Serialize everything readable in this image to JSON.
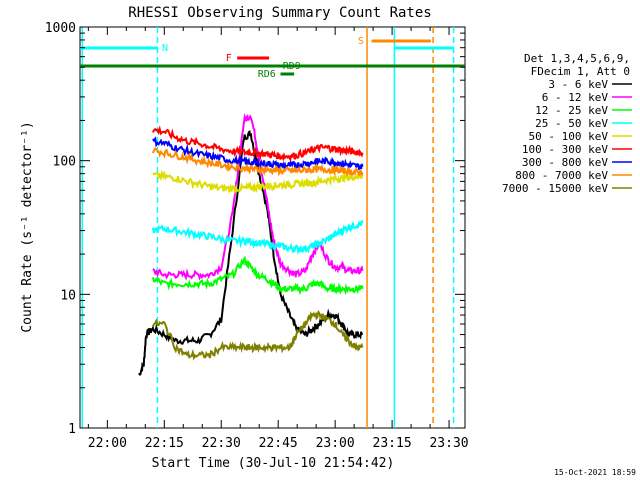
{
  "chart_data": {
    "type": "line",
    "title": "RHESSI Observing Summary Count Rates",
    "xlabel": "Start Time (30-Jul-10 21:54:42)",
    "ylabel": "Count Rate (s⁻¹ detector⁻¹)",
    "xlim": [
      21.88,
      23.57
    ],
    "ylim": [
      1,
      1000
    ],
    "yscale": "log",
    "x_unit": "hours UT",
    "xticks": [
      {
        "x": 22.0,
        "label": "22:00"
      },
      {
        "x": 22.25,
        "label": "22:15"
      },
      {
        "x": 22.5,
        "label": "22:30"
      },
      {
        "x": 22.75,
        "label": "22:45"
      },
      {
        "x": 23.0,
        "label": "23:00"
      },
      {
        "x": 23.25,
        "label": "23:15"
      },
      {
        "x": 23.5,
        "label": "23:30"
      }
    ],
    "yticks": [
      {
        "y": 1,
        "label": "1"
      },
      {
        "y": 10,
        "label": "10"
      },
      {
        "y": 100,
        "label": "100"
      },
      {
        "y": 1000,
        "label": "1000"
      }
    ],
    "legend_header": [
      "Det 1,3,4,5,6,9,",
      "FDecim 1, Att 0"
    ],
    "legend_position": "right",
    "date_stamp": "15-Oct-2021 18:59",
    "series": [
      {
        "name": "3 - 6 keV",
        "color": "#000000",
        "points": [
          [
            22.14,
            2.5
          ],
          [
            22.16,
            3.0
          ],
          [
            22.17,
            5.0
          ],
          [
            22.2,
            5.5
          ],
          [
            22.25,
            5.0
          ],
          [
            22.3,
            4.5
          ],
          [
            22.35,
            4.5
          ],
          [
            22.4,
            4.5
          ],
          [
            22.45,
            5.0
          ],
          [
            22.5,
            6.5
          ],
          [
            22.55,
            30
          ],
          [
            22.6,
            150
          ],
          [
            22.63,
            160
          ],
          [
            22.66,
            90
          ],
          [
            22.7,
            45
          ],
          [
            22.73,
            20
          ],
          [
            22.76,
            10
          ],
          [
            22.8,
            7
          ],
          [
            22.83,
            5.5
          ],
          [
            22.87,
            5.0
          ],
          [
            22.9,
            5.5
          ],
          [
            22.93,
            6.0
          ],
          [
            22.97,
            7.0
          ],
          [
            23.0,
            7.0
          ],
          [
            23.03,
            6.0
          ],
          [
            23.06,
            5.0
          ],
          [
            23.09,
            5.0
          ],
          [
            23.12,
            5.0
          ]
        ]
      },
      {
        "name": "6 - 12 keV",
        "color": "#ff00ff",
        "points": [
          [
            22.2,
            15
          ],
          [
            22.25,
            14
          ],
          [
            22.3,
            14
          ],
          [
            22.35,
            14
          ],
          [
            22.4,
            14
          ],
          [
            22.45,
            14
          ],
          [
            22.5,
            16
          ],
          [
            22.55,
            40
          ],
          [
            22.6,
            200
          ],
          [
            22.63,
            220
          ],
          [
            22.66,
            120
          ],
          [
            22.7,
            50
          ],
          [
            22.73,
            25
          ],
          [
            22.76,
            17
          ],
          [
            22.8,
            15
          ],
          [
            22.83,
            14
          ],
          [
            22.87,
            15
          ],
          [
            22.9,
            20
          ],
          [
            22.93,
            24
          ],
          [
            22.97,
            18
          ],
          [
            23.0,
            16
          ],
          [
            23.03,
            16
          ],
          [
            23.06,
            15
          ],
          [
            23.09,
            15
          ],
          [
            23.12,
            15
          ]
        ]
      },
      {
        "name": "12 - 25 keV",
        "color": "#00ff00",
        "points": [
          [
            22.2,
            13
          ],
          [
            22.25,
            12
          ],
          [
            22.3,
            12
          ],
          [
            22.35,
            12
          ],
          [
            22.4,
            12
          ],
          [
            22.45,
            12
          ],
          [
            22.5,
            13
          ],
          [
            22.55,
            14
          ],
          [
            22.6,
            18
          ],
          [
            22.63,
            16
          ],
          [
            22.66,
            14
          ],
          [
            22.7,
            13
          ],
          [
            22.73,
            12
          ],
          [
            22.76,
            11
          ],
          [
            22.8,
            11
          ],
          [
            22.83,
            11
          ],
          [
            22.87,
            11
          ],
          [
            22.9,
            12
          ],
          [
            22.93,
            12
          ],
          [
            22.97,
            11
          ],
          [
            23.0,
            11
          ],
          [
            23.03,
            11
          ],
          [
            23.06,
            11
          ],
          [
            23.09,
            11
          ],
          [
            23.12,
            11
          ]
        ]
      },
      {
        "name": "25 - 50 keV",
        "color": "#00ffff",
        "points": [
          [
            22.2,
            30
          ],
          [
            22.25,
            31
          ],
          [
            22.3,
            30
          ],
          [
            22.35,
            29
          ],
          [
            22.4,
            28
          ],
          [
            22.45,
            27
          ],
          [
            22.5,
            26
          ],
          [
            22.55,
            25
          ],
          [
            22.6,
            25
          ],
          [
            22.63,
            25
          ],
          [
            22.66,
            24
          ],
          [
            22.7,
            24
          ],
          [
            22.73,
            23
          ],
          [
            22.76,
            23
          ],
          [
            22.8,
            22
          ],
          [
            22.83,
            22
          ],
          [
            22.87,
            22
          ],
          [
            22.9,
            23
          ],
          [
            22.93,
            24
          ],
          [
            22.97,
            26
          ],
          [
            23.0,
            28
          ],
          [
            23.03,
            30
          ],
          [
            23.06,
            32
          ],
          [
            23.09,
            33
          ],
          [
            23.12,
            34
          ]
        ]
      },
      {
        "name": "50 - 100 keV",
        "color": "#dddd00",
        "points": [
          [
            22.2,
            78
          ],
          [
            22.25,
            76
          ],
          [
            22.3,
            74
          ],
          [
            22.35,
            70
          ],
          [
            22.4,
            67
          ],
          [
            22.45,
            64
          ],
          [
            22.5,
            62
          ],
          [
            22.55,
            62
          ],
          [
            22.6,
            62
          ],
          [
            22.63,
            63
          ],
          [
            22.66,
            64
          ],
          [
            22.7,
            65
          ],
          [
            22.73,
            65
          ],
          [
            22.76,
            66
          ],
          [
            22.8,
            66
          ],
          [
            22.83,
            67
          ],
          [
            22.87,
            68
          ],
          [
            22.9,
            68
          ],
          [
            22.93,
            70
          ],
          [
            22.97,
            72
          ],
          [
            23.0,
            73
          ],
          [
            23.03,
            74
          ],
          [
            23.06,
            75
          ],
          [
            23.09,
            76
          ],
          [
            23.12,
            78
          ]
        ]
      },
      {
        "name": "100 - 300 keV",
        "color": "#ff0000",
        "points": [
          [
            22.2,
            170
          ],
          [
            22.25,
            165
          ],
          [
            22.3,
            150
          ],
          [
            22.35,
            140
          ],
          [
            22.4,
            135
          ],
          [
            22.45,
            128
          ],
          [
            22.5,
            122
          ],
          [
            22.55,
            118
          ],
          [
            22.6,
            115
          ],
          [
            22.63,
            115
          ],
          [
            22.66,
            114
          ],
          [
            22.7,
            112
          ],
          [
            22.73,
            110
          ],
          [
            22.76,
            108
          ],
          [
            22.8,
            108
          ],
          [
            22.83,
            110
          ],
          [
            22.87,
            115
          ],
          [
            22.9,
            120
          ],
          [
            22.93,
            125
          ],
          [
            22.97,
            125
          ],
          [
            23.0,
            122
          ],
          [
            23.03,
            120
          ],
          [
            23.06,
            118
          ],
          [
            23.09,
            116
          ],
          [
            23.12,
            115
          ]
        ]
      },
      {
        "name": "300 - 800 keV",
        "color": "#0000ff",
        "points": [
          [
            22.2,
            140
          ],
          [
            22.25,
            135
          ],
          [
            22.3,
            125
          ],
          [
            22.35,
            118
          ],
          [
            22.4,
            112
          ],
          [
            22.45,
            108
          ],
          [
            22.5,
            104
          ],
          [
            22.55,
            100
          ],
          [
            22.6,
            98
          ],
          [
            22.63,
            97
          ],
          [
            22.66,
            96
          ],
          [
            22.7,
            95
          ],
          [
            22.73,
            94
          ],
          [
            22.76,
            92
          ],
          [
            22.8,
            92
          ],
          [
            22.83,
            93
          ],
          [
            22.87,
            95
          ],
          [
            22.9,
            97
          ],
          [
            22.93,
            99
          ],
          [
            22.97,
            99
          ],
          [
            23.0,
            97
          ],
          [
            23.03,
            95
          ],
          [
            23.06,
            93
          ],
          [
            23.09,
            91
          ],
          [
            23.12,
            90
          ]
        ]
      },
      {
        "name": "800 - 7000 keV",
        "color": "#ff8800",
        "points": [
          [
            22.2,
            120
          ],
          [
            22.25,
            115
          ],
          [
            22.3,
            110
          ],
          [
            22.35,
            105
          ],
          [
            22.4,
            100
          ],
          [
            22.45,
            96
          ],
          [
            22.5,
            93
          ],
          [
            22.55,
            90
          ],
          [
            22.6,
            88
          ],
          [
            22.63,
            87
          ],
          [
            22.66,
            86
          ],
          [
            22.7,
            85
          ],
          [
            22.73,
            85
          ],
          [
            22.76,
            84
          ],
          [
            22.8,
            84
          ],
          [
            22.83,
            84
          ],
          [
            22.87,
            85
          ],
          [
            22.9,
            86
          ],
          [
            22.93,
            86
          ],
          [
            22.97,
            86
          ],
          [
            23.0,
            85
          ],
          [
            23.03,
            84
          ],
          [
            23.06,
            83
          ],
          [
            23.09,
            82
          ],
          [
            23.12,
            82
          ]
        ]
      },
      {
        "name": "7000 - 15000 keV",
        "color": "#808000",
        "points": [
          [
            22.2,
            6
          ],
          [
            22.25,
            6
          ],
          [
            22.3,
            4
          ],
          [
            22.35,
            3.5
          ],
          [
            22.4,
            3.5
          ],
          [
            22.45,
            3.5
          ],
          [
            22.5,
            4
          ],
          [
            22.55,
            4
          ],
          [
            22.6,
            4
          ],
          [
            22.63,
            4
          ],
          [
            22.66,
            4
          ],
          [
            22.7,
            4
          ],
          [
            22.73,
            4
          ],
          [
            22.76,
            4
          ],
          [
            22.8,
            4
          ],
          [
            22.83,
            5
          ],
          [
            22.87,
            6
          ],
          [
            22.9,
            7
          ],
          [
            22.93,
            7
          ],
          [
            22.97,
            6.5
          ],
          [
            23.0,
            6
          ],
          [
            23.03,
            5
          ],
          [
            23.06,
            4.5
          ],
          [
            23.09,
            4
          ],
          [
            23.12,
            4
          ]
        ]
      }
    ],
    "flags": [
      {
        "label": "N",
        "color": "#00ffff",
        "level_px": 48,
        "segments": [
          [
            21.88,
            22.22
          ],
          [
            23.26,
            23.52
          ]
        ],
        "show_label_at": 22.24
      },
      {
        "label": "F",
        "color": "#ff0000",
        "level_px": 58,
        "segments": [
          [
            22.57,
            22.71
          ]
        ],
        "show_label_at": 22.52
      },
      {
        "label": "S",
        "color": "#ff8800",
        "level_px": 41,
        "segments": [
          [
            23.16,
            23.42
          ]
        ],
        "show_label_at": 23.1
      },
      {
        "label": "RD9",
        "color": "#008000",
        "level_px": 66,
        "segments": [
          [
            21.88,
            23.57
          ]
        ],
        "show_label_at": 22.77
      },
      {
        "label": "RD6",
        "color": "#008000",
        "level_px": 74,
        "segments": [
          [
            22.76,
            22.82
          ]
        ],
        "show_label_at": 22.66
      }
    ],
    "vertical_markers": [
      {
        "x": 21.89,
        "color": "#00ffff",
        "style": "solid"
      },
      {
        "x": 22.22,
        "color": "#00ffff",
        "style": "dashed"
      },
      {
        "x": 23.14,
        "color": "#ff8800",
        "style": "solid"
      },
      {
        "x": 23.26,
        "color": "#00ffff",
        "style": "solid"
      },
      {
        "x": 23.43,
        "color": "#ff8800",
        "style": "dashed"
      },
      {
        "x": 23.52,
        "color": "#00ffff",
        "style": "dashed"
      }
    ]
  }
}
